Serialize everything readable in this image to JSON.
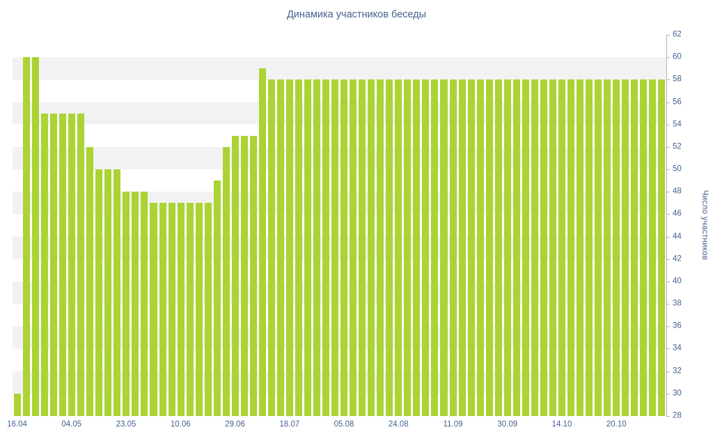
{
  "title": "Динамика участников беседы",
  "chart_data": {
    "type": "bar",
    "title": "Динамика участников беседы",
    "xlabel": "",
    "ylabel": "Число участников",
    "ylim": [
      28,
      62
    ],
    "y_ticks": [
      28,
      30,
      32,
      34,
      36,
      38,
      40,
      42,
      44,
      46,
      48,
      50,
      52,
      54,
      56,
      58,
      60,
      62
    ],
    "y_axis_side": "right",
    "legend": "none",
    "grid": "alternating-horizontal-bands",
    "band_step": 2,
    "x_tick_labels": [
      {
        "index": 0,
        "label": "16.04"
      },
      {
        "index": 6,
        "label": "04.05"
      },
      {
        "index": 12,
        "label": "23.05"
      },
      {
        "index": 18,
        "label": "10.06"
      },
      {
        "index": 24,
        "label": "29.06"
      },
      {
        "index": 30,
        "label": "18.07"
      },
      {
        "index": 36,
        "label": "05.08"
      },
      {
        "index": 42,
        "label": "24.08"
      },
      {
        "index": 48,
        "label": "11.09"
      },
      {
        "index": 54,
        "label": "30.09"
      },
      {
        "index": 60,
        "label": "14.10"
      },
      {
        "index": 66,
        "label": "20.10"
      }
    ],
    "values": [
      30,
      60,
      60,
      55,
      55,
      55,
      55,
      55,
      52,
      50,
      50,
      50,
      48,
      48,
      48,
      47,
      47,
      47,
      47,
      47,
      47,
      47,
      49,
      52,
      53,
      53,
      53,
      59,
      58,
      58,
      58,
      58,
      58,
      58,
      58,
      58,
      58,
      58,
      58,
      58,
      58,
      58,
      58,
      58,
      58,
      58,
      58,
      58,
      58,
      58,
      58,
      58,
      58,
      58,
      58,
      58,
      58,
      58,
      58,
      58,
      58,
      58,
      58,
      58,
      58,
      58,
      58,
      58,
      58,
      58,
      58,
      58
    ]
  },
  "colors": {
    "background": "#ffffff",
    "bar": "#abd334",
    "band_light": "#ffffff",
    "band_gray": "#f2f2f2",
    "axis_text": "#46618f",
    "axis_line": "#b4b4b4"
  }
}
